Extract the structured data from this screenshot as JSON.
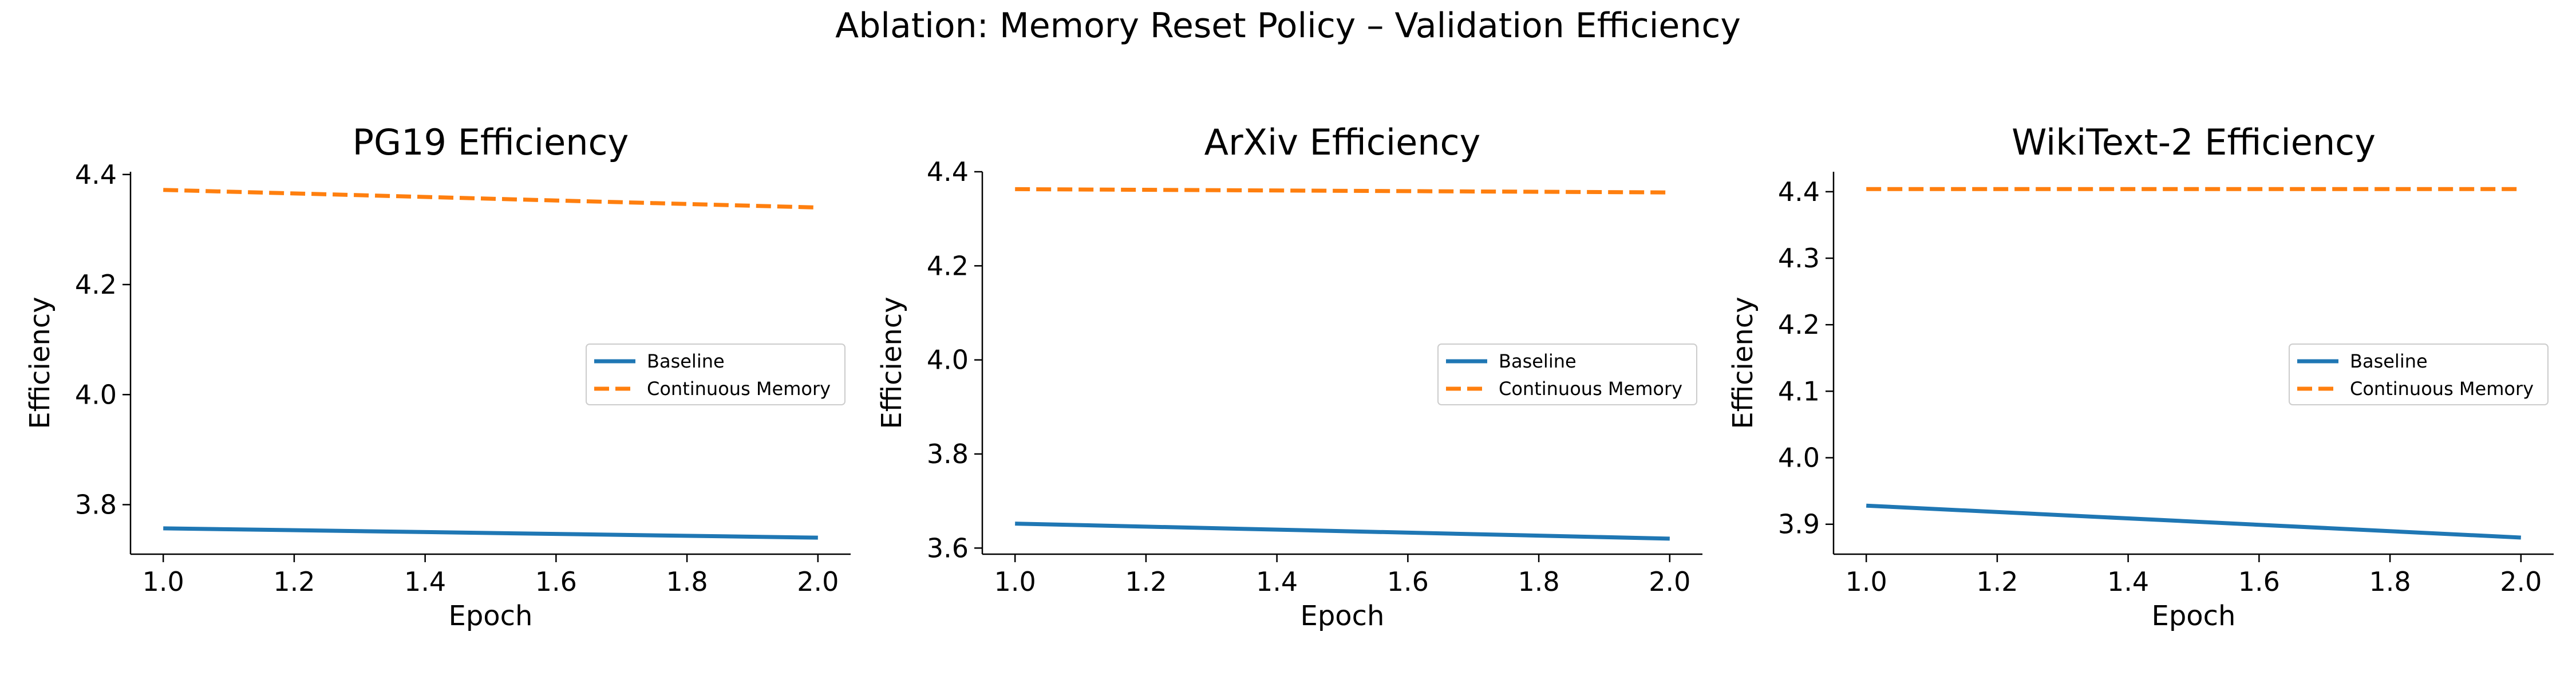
{
  "figure": {
    "title": "Ablation: Memory Reset Policy – Validation Efficiency"
  },
  "colors": {
    "baseline": "#1f77b4",
    "continuous": "#ff7f0e"
  },
  "chart_data": [
    {
      "type": "line",
      "title": "PG19 Efficiency",
      "xlabel": "Epoch",
      "ylabel": "Efficiency",
      "xlim": [
        0.95,
        2.05
      ],
      "ylim": [
        3.71,
        4.405
      ],
      "xticks": [
        1.0,
        1.2,
        1.4,
        1.6,
        1.8,
        2.0
      ],
      "xtick_labels": [
        "1.0",
        "1.2",
        "1.4",
        "1.6",
        "1.8",
        "2.0"
      ],
      "yticks": [
        3.8,
        4.0,
        4.2,
        4.4
      ],
      "ytick_labels": [
        "3.8",
        "4.0",
        "4.2",
        "4.4"
      ],
      "legend": "center-right",
      "grid": false,
      "x": [
        1.0,
        2.0
      ],
      "series": [
        {
          "name": "Baseline",
          "values": [
            3.757,
            3.74
          ],
          "style": "solid"
        },
        {
          "name": "Continuous Memory",
          "values": [
            4.372,
            4.34
          ],
          "style": "dashed"
        }
      ]
    },
    {
      "type": "line",
      "title": "ArXiv Efficiency",
      "xlabel": "Epoch",
      "ylabel": "Efficiency",
      "xlim": [
        0.95,
        2.05
      ],
      "ylim": [
        3.587,
        4.4
      ],
      "xticks": [
        1.0,
        1.2,
        1.4,
        1.6,
        1.8,
        2.0
      ],
      "xtick_labels": [
        "1.0",
        "1.2",
        "1.4",
        "1.6",
        "1.8",
        "2.0"
      ],
      "yticks": [
        3.6,
        3.8,
        4.0,
        4.2,
        4.4
      ],
      "ytick_labels": [
        "3.6",
        "3.8",
        "4.0",
        "4.2",
        "4.4"
      ],
      "legend": "center-right",
      "grid": false,
      "x": [
        1.0,
        2.0
      ],
      "series": [
        {
          "name": "Baseline",
          "values": [
            3.652,
            3.62
          ],
          "style": "solid"
        },
        {
          "name": "Continuous Memory",
          "values": [
            4.363,
            4.356
          ],
          "style": "dashed"
        }
      ]
    },
    {
      "type": "line",
      "title": "WikiText-2 Efficiency",
      "xlabel": "Epoch",
      "ylabel": "Efficiency",
      "xlim": [
        0.95,
        2.05
      ],
      "ylim": [
        3.855,
        4.43
      ],
      "xticks": [
        1.0,
        1.2,
        1.4,
        1.6,
        1.8,
        2.0
      ],
      "xtick_labels": [
        "1.0",
        "1.2",
        "1.4",
        "1.6",
        "1.8",
        "2.0"
      ],
      "yticks": [
        3.9,
        4.0,
        4.1,
        4.2,
        4.3,
        4.4
      ],
      "ytick_labels": [
        "3.9",
        "4.0",
        "4.1",
        "4.2",
        "4.3",
        "4.4"
      ],
      "legend": "center-right",
      "grid": false,
      "x": [
        1.0,
        2.0
      ],
      "series": [
        {
          "name": "Baseline",
          "values": [
            3.928,
            3.88
          ],
          "style": "solid"
        },
        {
          "name": "Continuous Memory",
          "values": [
            4.404,
            4.404
          ],
          "style": "dashed"
        }
      ]
    }
  ]
}
